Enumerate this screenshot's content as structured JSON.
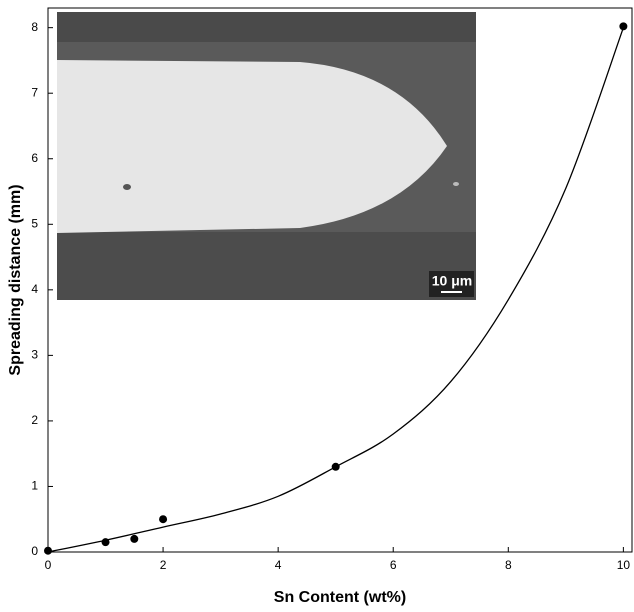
{
  "chart_data": {
    "type": "scatter",
    "x_label": "Sn Content (wt%)",
    "y_label": "Spreading distance (mm)",
    "annotations": [
      "10 μm"
    ],
    "series": [
      {
        "mode": "markers",
        "color": "#000000",
        "x": [
          0,
          1,
          1.5,
          2,
          5,
          10
        ],
        "values": [
          0.02,
          0.15,
          0.2,
          0.5,
          1.3,
          8.02
        ]
      },
      {
        "mode": "line",
        "color": "#000000",
        "x": [
          0,
          1,
          2,
          3,
          4,
          5,
          6,
          7,
          8,
          9,
          10
        ],
        "values": [
          0,
          0.18,
          0.38,
          0.58,
          0.85,
          1.3,
          1.8,
          2.6,
          3.85,
          5.55,
          8.0
        ]
      }
    ],
    "xlim": [
      0,
      10.15
    ],
    "ylim": [
      0,
      8.3
    ],
    "xticks": [
      0,
      2,
      4,
      6,
      8,
      10
    ],
    "yticks": [
      0,
      1,
      2,
      3,
      4,
      5,
      6,
      7,
      8
    ]
  }
}
